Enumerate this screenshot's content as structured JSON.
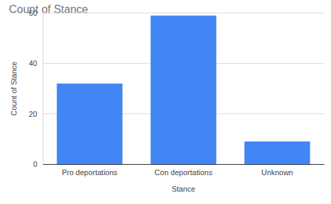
{
  "chart_data": {
    "type": "bar",
    "title": "Count of Stance",
    "x_label": "Stance",
    "y_label": "Count of Stance",
    "categories": [
      "Pro deportations",
      "Con deportations",
      "Unknown"
    ],
    "values": [
      32,
      59,
      9
    ],
    "color": "#4285f4",
    "ylim": [
      0,
      60
    ],
    "yticks": [
      0,
      20,
      40,
      60
    ],
    "grid": true
  }
}
